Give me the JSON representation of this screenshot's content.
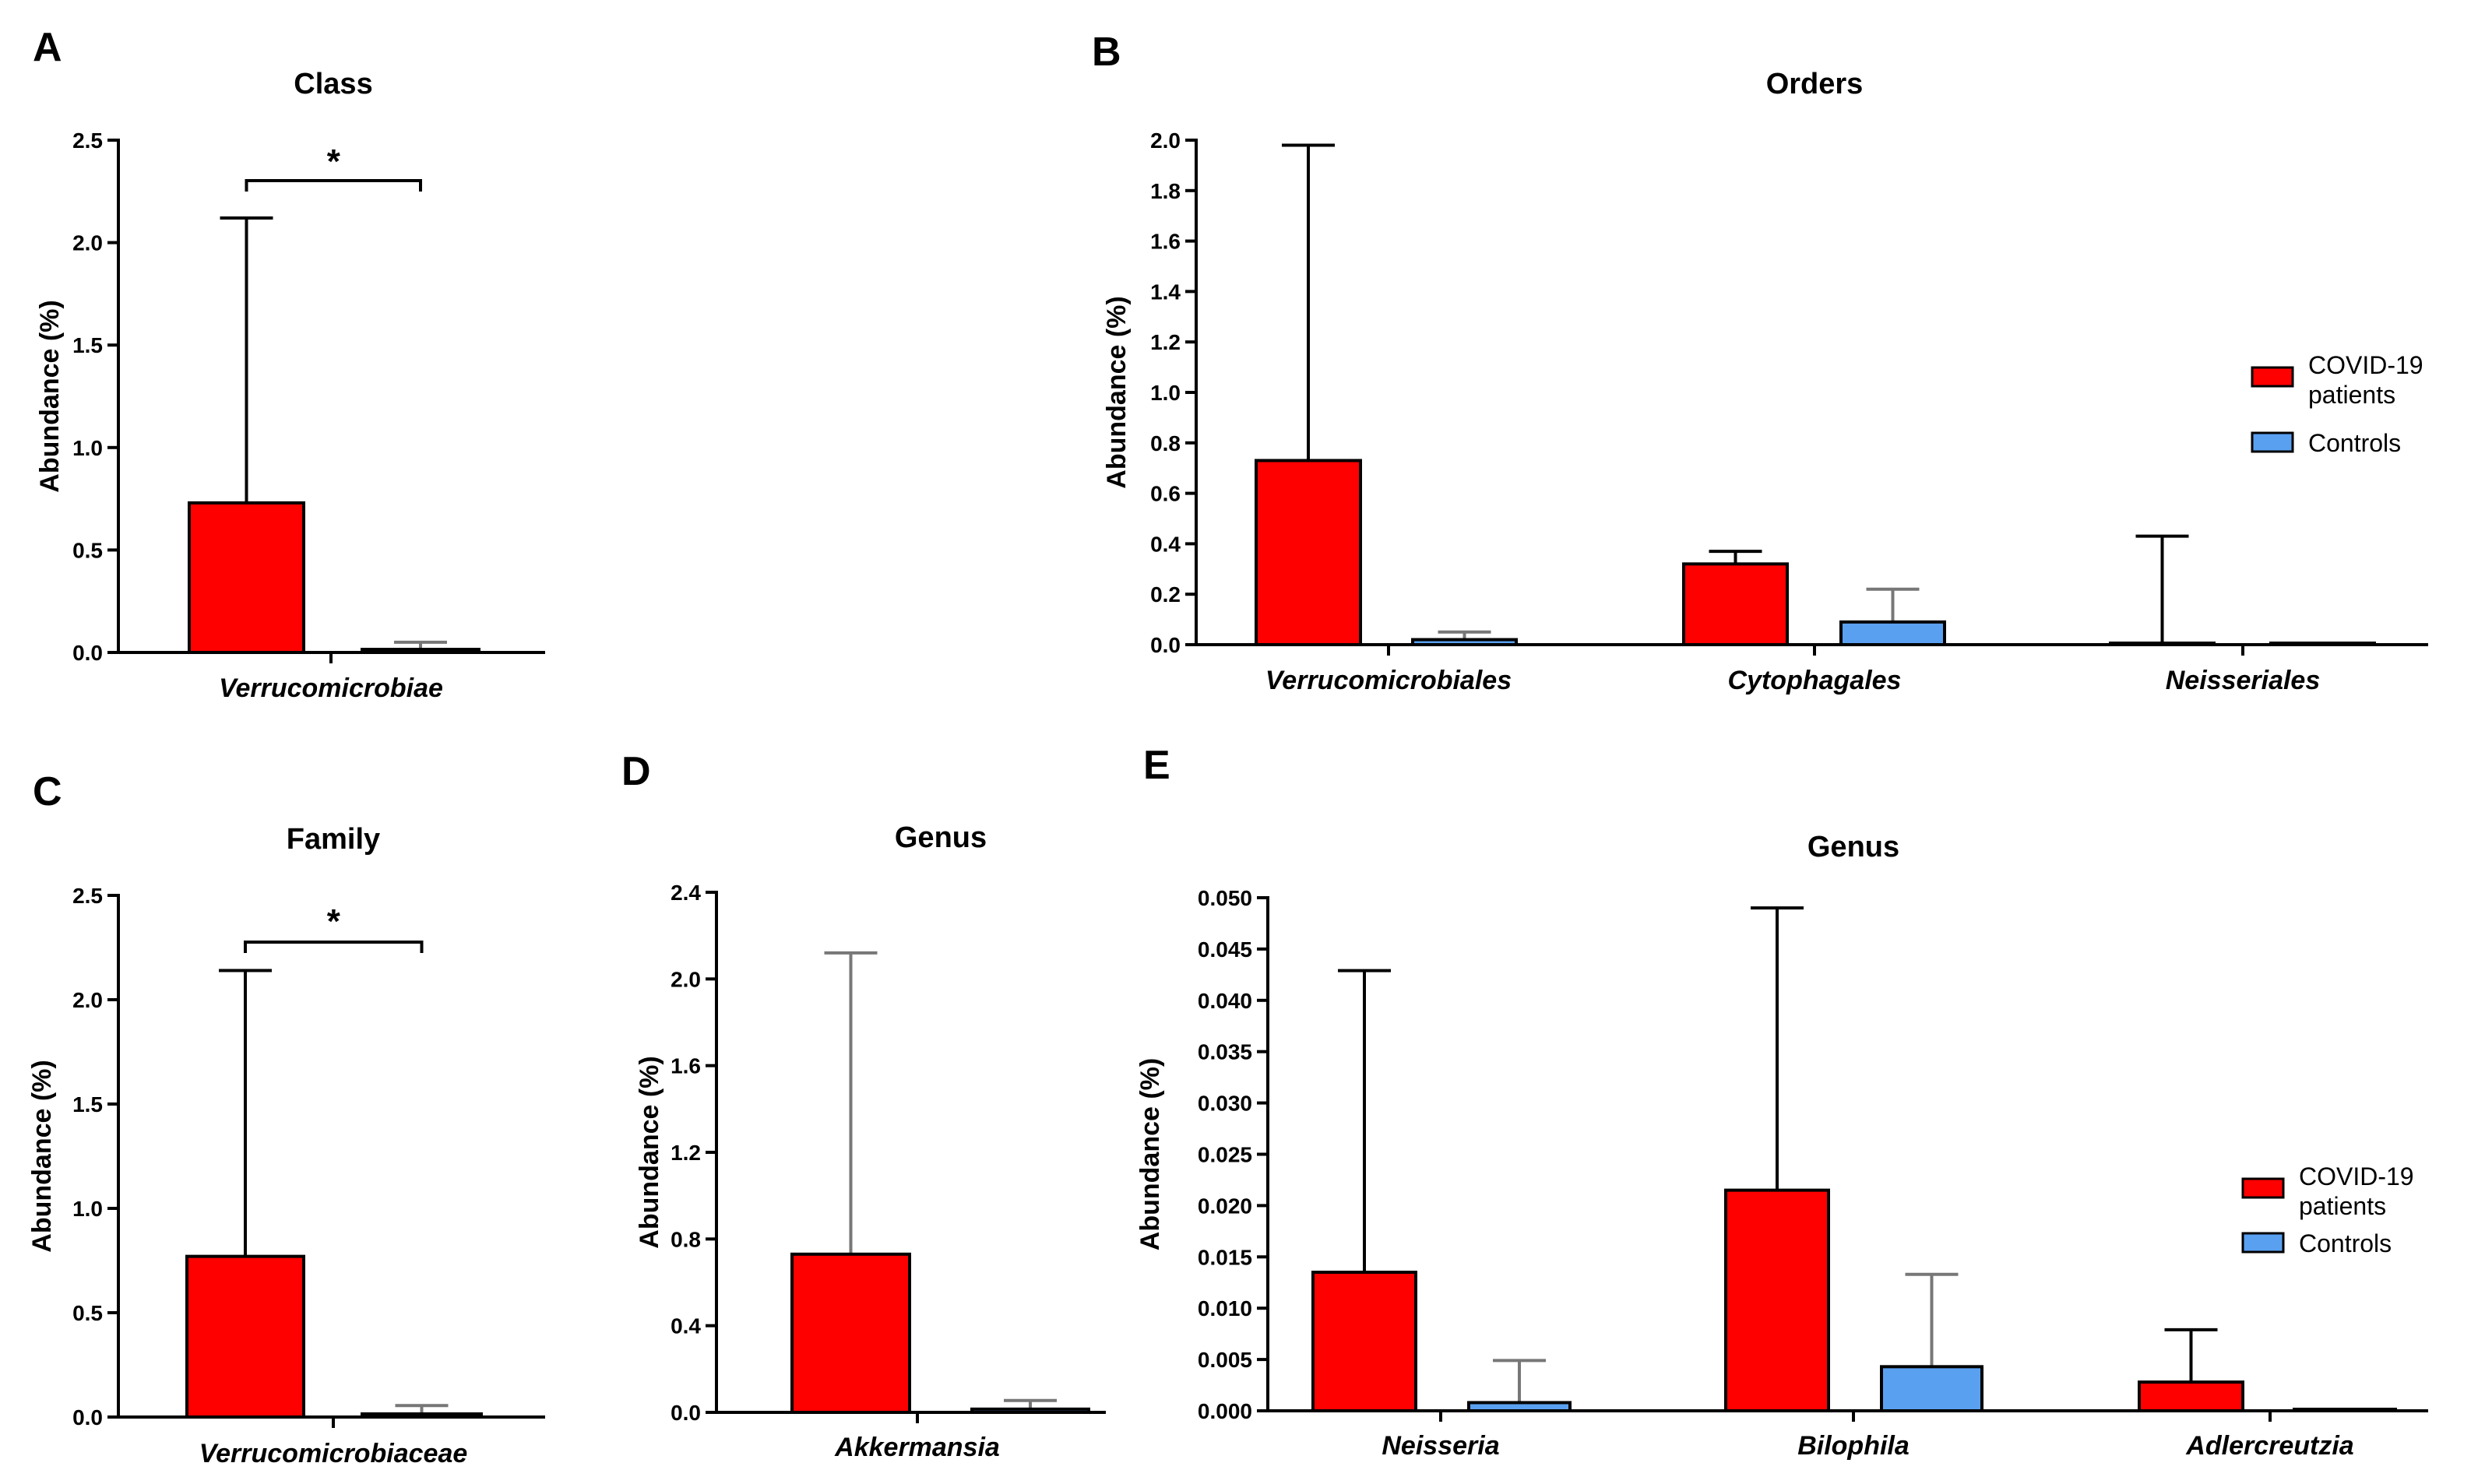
{
  "colors": {
    "covid": "#ff0000",
    "controls": "#5aa0f0",
    "axis": "#000000"
  },
  "legend": {
    "covid_line1": "COVID-19",
    "covid_line2": "patients",
    "controls": "Controls"
  },
  "chart_data": [
    {
      "id": "A",
      "type": "bar",
      "letter": "A",
      "title": "Class",
      "ylabel": "Abundance (%)",
      "ylim": [
        0,
        2.5
      ],
      "yticks": [
        "0.0",
        "0.5",
        "1.0",
        "1.5",
        "2.0",
        "2.5"
      ],
      "ytick_values": [
        0,
        0.5,
        1.0,
        1.5,
        2.0,
        2.5
      ],
      "categories": [
        "Verrucomicrobiae"
      ],
      "series": [
        {
          "name": "COVID-19 patients",
          "values": [
            0.73
          ],
          "errors": [
            2.12
          ]
        },
        {
          "name": "Controls",
          "values": [
            0.015
          ],
          "errors": [
            0.05
          ]
        }
      ],
      "significance": "*",
      "legend": false
    },
    {
      "id": "B",
      "type": "bar",
      "letter": "B",
      "title": "Orders",
      "ylabel": "Abundance (%)",
      "ylim": [
        0,
        2.0
      ],
      "yticks": [
        "0.0",
        "0.2",
        "0.4",
        "0.6",
        "0.8",
        "1.0",
        "1.2",
        "1.4",
        "1.6",
        "1.8",
        "2.0"
      ],
      "ytick_values": [
        0,
        0.2,
        0.4,
        0.6,
        0.8,
        1.0,
        1.2,
        1.4,
        1.6,
        1.8,
        2.0
      ],
      "categories": [
        "Verrucomicrobiales",
        "Cytophagales",
        "Neisseriales"
      ],
      "series": [
        {
          "name": "COVID-19 patients",
          "values": [
            0.73,
            0.32,
            0.005
          ],
          "errors": [
            1.98,
            0.37,
            0.43
          ]
        },
        {
          "name": "Controls",
          "values": [
            0.02,
            0.09,
            0.001
          ],
          "errors": [
            0.05,
            0.22,
            0.002
          ]
        }
      ],
      "significance": "",
      "legend": true
    },
    {
      "id": "C",
      "type": "bar",
      "letter": "C",
      "title": "Family",
      "ylabel": "Abundance (%)",
      "ylim": [
        0,
        2.5
      ],
      "yticks": [
        "0.0",
        "0.5",
        "1.0",
        "1.5",
        "2.0",
        "2.5"
      ],
      "ytick_values": [
        0,
        0.5,
        1.0,
        1.5,
        2.0,
        2.5
      ],
      "categories": [
        "Verrucomicrobiaceae"
      ],
      "series": [
        {
          "name": "COVID-19 patients",
          "values": [
            0.77
          ],
          "errors": [
            2.14
          ]
        },
        {
          "name": "Controls",
          "values": [
            0.015
          ],
          "errors": [
            0.055
          ]
        }
      ],
      "significance": "*",
      "legend": false
    },
    {
      "id": "D",
      "type": "bar",
      "letter": "D",
      "title": "Genus",
      "ylabel": "Abundance (%)",
      "ylim": [
        0,
        2.4
      ],
      "yticks": [
        "0.0",
        "0.4",
        "0.8",
        "1.2",
        "1.6",
        "2.0",
        "2.4"
      ],
      "ytick_values": [
        0,
        0.4,
        0.8,
        1.2,
        1.6,
        2.0,
        2.4
      ],
      "categories": [
        "Akkermansia"
      ],
      "series": [
        {
          "name": "COVID-19 patients",
          "values": [
            0.73
          ],
          "errors": [
            2.12
          ]
        },
        {
          "name": "Controls",
          "values": [
            0.015
          ],
          "errors": [
            0.055
          ]
        }
      ],
      "significance": "",
      "legend": false
    },
    {
      "id": "E",
      "type": "bar",
      "letter": "E",
      "title": "Genus",
      "ylabel": "Abundance (%)",
      "ylim": [
        0,
        0.05
      ],
      "yticks": [
        "0.000",
        "0.005",
        "0.010",
        "0.015",
        "0.020",
        "0.025",
        "0.030",
        "0.035",
        "0.040",
        "0.045",
        "0.050"
      ],
      "ytick_values": [
        0,
        0.005,
        0.01,
        0.015,
        0.02,
        0.025,
        0.03,
        0.035,
        0.04,
        0.045,
        0.05
      ],
      "categories": [
        "Neisseria",
        "Bilophila",
        "Adlercreutzia"
      ],
      "series": [
        {
          "name": "COVID-19 patients",
          "values": [
            0.0135,
            0.0215,
            0.0028
          ],
          "errors": [
            0.0429,
            0.049,
            0.0079
          ]
        },
        {
          "name": "Controls",
          "values": [
            0.0008,
            0.0043,
            0.0
          ],
          "errors": [
            0.0049,
            0.0133,
            0.0
          ]
        }
      ],
      "significance": "",
      "legend": true
    }
  ]
}
